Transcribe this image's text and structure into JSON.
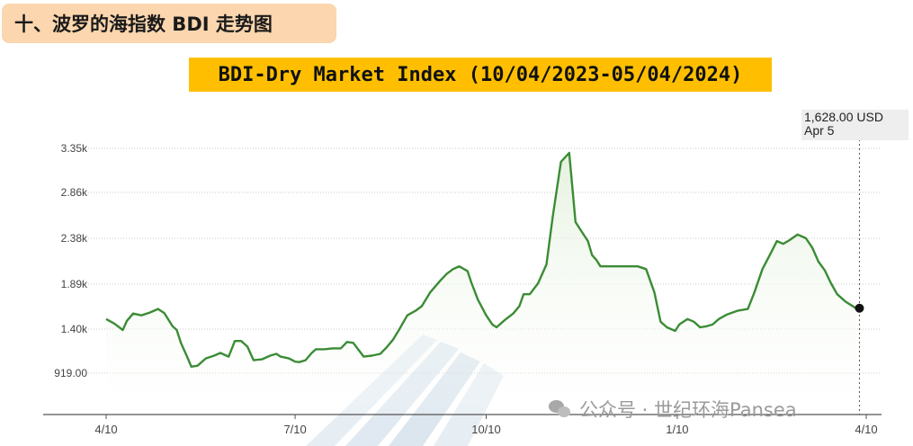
{
  "header": {
    "section_title": "十、波罗的海指数 BDI 走势图"
  },
  "banner": {
    "title": "BDI-Dry Market Index (10/04/2023-05/04/2024)"
  },
  "tooltip": {
    "value": "1,628.00 USD",
    "date": "Apr 5"
  },
  "watermark": {
    "text": "公众号 · 世纪环海Pansea",
    "icon": "wechat-icon"
  },
  "chart_data": {
    "type": "area",
    "title": "",
    "xlabel": "",
    "ylabel": "",
    "y_tick_labels": [
      "3.35k",
      "2.86k",
      "2.38k",
      "1.89k",
      "1.40k",
      "919.00"
    ],
    "y_ticks": [
      3350,
      2860,
      2380,
      1890,
      1400,
      919
    ],
    "x_tick_labels": [
      "4/10",
      "7/10",
      "10/10",
      "1/10",
      "4/10"
    ],
    "x_ticks": [
      "2023-04-10",
      "2023-07-10",
      "2023-10-10",
      "2024-01-10",
      "2024-04-10"
    ],
    "ylim": [
      450,
      3450
    ],
    "grid": "horizontal-dotted",
    "colors": {
      "line": "#3a8c34",
      "fill": "#eaf4e6",
      "marker": "#111111"
    },
    "series": [
      {
        "name": "",
        "x": [
          "2023-04-10",
          "2023-04-14",
          "2023-04-18",
          "2023-04-20",
          "2023-04-23",
          "2023-04-27",
          "2023-05-01",
          "2023-05-05",
          "2023-05-08",
          "2023-05-12",
          "2023-05-14",
          "2023-05-16",
          "2023-05-19",
          "2023-05-21",
          "2023-05-24",
          "2023-05-28",
          "2023-06-01",
          "2023-06-04",
          "2023-06-08",
          "2023-06-11",
          "2023-06-14",
          "2023-06-17",
          "2023-06-20",
          "2023-06-24",
          "2023-06-28",
          "2023-07-01",
          "2023-07-03",
          "2023-07-07",
          "2023-07-10",
          "2023-07-12",
          "2023-07-15",
          "2023-07-18",
          "2023-07-20",
          "2023-07-24",
          "2023-07-28",
          "2023-08-01",
          "2023-08-04",
          "2023-08-07",
          "2023-08-12",
          "2023-08-16",
          "2023-08-20",
          "2023-08-23",
          "2023-08-26",
          "2023-08-29",
          "2023-09-02",
          "2023-09-06",
          "2023-09-09",
          "2023-09-13",
          "2023-09-18",
          "2023-09-21",
          "2023-09-24",
          "2023-09-27",
          "2023-10-01",
          "2023-10-03",
          "2023-10-06",
          "2023-10-10",
          "2023-10-13",
          "2023-10-15",
          "2023-10-19",
          "2023-10-23",
          "2023-10-26",
          "2023-10-28",
          "2023-10-31",
          "2023-11-04",
          "2023-11-08",
          "2023-11-11",
          "2023-11-15",
          "2023-11-19",
          "2023-11-22",
          "2023-11-25",
          "2023-11-28",
          "2023-11-30",
          "2023-12-02",
          "2023-12-04",
          "2023-12-06",
          "2023-12-08",
          "2023-12-11",
          "2023-12-14",
          "2023-12-18",
          "2023-12-22",
          "2023-12-26",
          "2023-12-30",
          "2024-01-02",
          "2024-01-05",
          "2024-01-09",
          "2024-01-11",
          "2024-01-13",
          "2024-01-15",
          "2024-01-18",
          "2024-01-21",
          "2024-01-24",
          "2024-01-27",
          "2024-01-30",
          "2024-02-03",
          "2024-02-08",
          "2024-02-13",
          "2024-02-16",
          "2024-02-20",
          "2024-02-24",
          "2024-02-27",
          "2024-03-01",
          "2024-03-04",
          "2024-03-08",
          "2024-03-12",
          "2024-03-15",
          "2024-03-18",
          "2024-03-21",
          "2024-03-24",
          "2024-03-27",
          "2024-03-31",
          "2024-04-05"
        ],
        "values": [
          1510,
          1460,
          1390,
          1490,
          1570,
          1550,
          1580,
          1620,
          1575,
          1430,
          1390,
          1250,
          1100,
          990,
          1000,
          1080,
          1110,
          1140,
          1100,
          1270,
          1270,
          1210,
          1060,
          1070,
          1110,
          1130,
          1100,
          1080,
          1045,
          1040,
          1060,
          1140,
          1180,
          1180,
          1190,
          1190,
          1260,
          1250,
          1100,
          1110,
          1130,
          1200,
          1280,
          1390,
          1550,
          1600,
          1650,
          1800,
          1930,
          2000,
          2050,
          2080,
          2030,
          1900,
          1720,
          1550,
          1450,
          1420,
          1500,
          1570,
          1650,
          1780,
          1780,
          1900,
          2100,
          2600,
          3200,
          3300,
          2550,
          2450,
          2350,
          2200,
          2150,
          2080,
          2080,
          2080,
          2080,
          2080,
          2080,
          2080,
          2050,
          1800,
          1480,
          1420,
          1380,
          1450,
          1480,
          1510,
          1480,
          1420,
          1430,
          1450,
          1510,
          1560,
          1600,
          1620,
          1790,
          2050,
          2220,
          2350,
          2320,
          2360,
          2420,
          2380,
          2280,
          2130,
          2040,
          1900,
          1780,
          1700,
          1628
        ]
      }
    ],
    "last_point": {
      "x": "2024-04-05",
      "value": 1628
    }
  }
}
